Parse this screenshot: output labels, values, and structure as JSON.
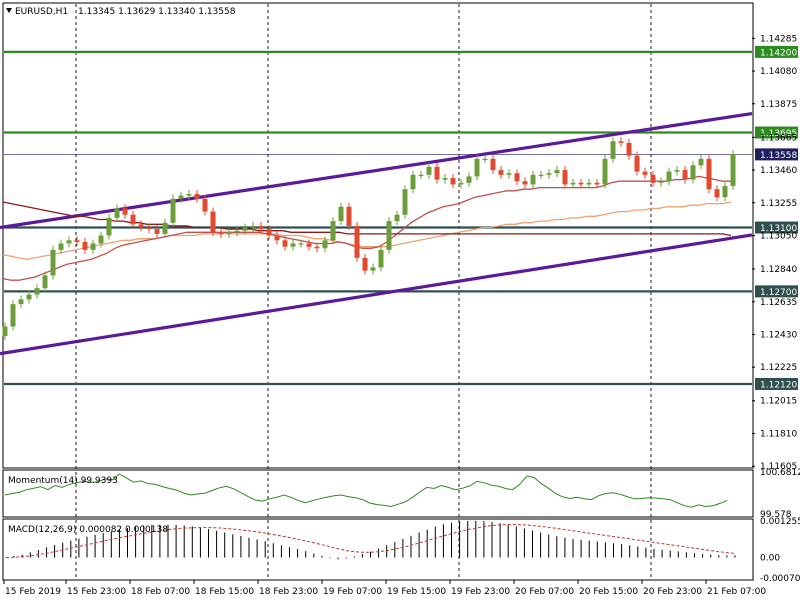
{
  "chart_data": [
    {
      "type": "candlestick",
      "symbol_label": "EURUSD,H1",
      "ohlc_label": "1.13345 1.13629 1.13340 1.13558",
      "ylim": [
        1.116,
        1.145
      ],
      "y_ticks": [
        "1.14285",
        "1.14080",
        "1.13875",
        "1.13665",
        "1.13460",
        "1.13255",
        "1.13050",
        "1.12840",
        "1.12635",
        "1.12430",
        "1.12225",
        "1.12015",
        "1.11810",
        "1.11605"
      ],
      "x_ticks": [
        "15 Feb 2019",
        "15 Feb 23:00",
        "18 Feb 07:00",
        "18 Feb 15:00",
        "18 Feb 23:00",
        "19 Feb 07:00",
        "19 Feb 15:00",
        "19 Feb 23:00",
        "20 Feb 07:00",
        "20 Feb 15:00",
        "20 Feb 23:00",
        "21 Feb 07:00"
      ],
      "bar_count": 92,
      "close": [
        1.1248,
        1.1262,
        1.1265,
        1.1268,
        1.1272,
        1.128,
        1.1296,
        1.13,
        1.1302,
        1.1301,
        1.1296,
        1.13,
        1.1305,
        1.1316,
        1.1322,
        1.1318,
        1.1312,
        1.131,
        1.1309,
        1.1306,
        1.1313,
        1.1328,
        1.133,
        1.1331,
        1.1328,
        1.132,
        1.1307,
        1.1306,
        1.1307,
        1.1308,
        1.131,
        1.1311,
        1.1309,
        1.1305,
        1.1302,
        1.1298,
        1.13,
        1.13,
        1.1298,
        1.1297,
        1.1302,
        1.1314,
        1.1323,
        1.1311,
        1.1291,
        1.1283,
        1.1285,
        1.1296,
        1.1314,
        1.1318,
        1.1334,
        1.1343,
        1.1343,
        1.1348,
        1.134,
        1.1341,
        1.1337,
        1.1338,
        1.1342,
        1.1353,
        1.1353,
        1.1346,
        1.1343,
        1.1344,
        1.1339,
        1.1337,
        1.1343,
        1.1343,
        1.1344,
        1.1346,
        1.1337,
        1.1338,
        1.1337,
        1.1338,
        1.1337,
        1.1353,
        1.1364,
        1.1363,
        1.1355,
        1.1345,
        1.1343,
        1.1338,
        1.1339,
        1.1345,
        1.1346,
        1.134,
        1.1349,
        1.1353,
        1.1334,
        1.1329,
        1.1336,
        1.1356
      ],
      "series": [
        {
          "name": "",
          "color": "#f0a071",
          "values": [
            1.1293,
            1.1292,
            1.1291,
            1.129,
            1.1291,
            1.1292,
            1.1293,
            1.1294,
            1.1295,
            1.1296,
            1.1297,
            1.1298,
            1.1299,
            1.13,
            1.1301,
            1.1302,
            1.1302,
            1.1303,
            1.1303,
            1.1303,
            1.1304,
            1.1305,
            1.1305,
            1.1305,
            1.1305,
            1.1306,
            1.1306,
            1.1306,
            1.1306,
            1.1306,
            1.1306,
            1.1306,
            1.1306,
            1.1306,
            1.1306,
            1.1305,
            1.1305,
            1.1305,
            1.1304,
            1.1303,
            1.1303,
            1.1302,
            1.1301,
            1.13,
            1.1299,
            1.1298,
            1.1298,
            1.1298,
            1.1298,
            1.1299,
            1.13,
            1.1301,
            1.1302,
            1.1303,
            1.1304,
            1.1305,
            1.1306,
            1.1307,
            1.1308,
            1.1309,
            1.131,
            1.131,
            1.1311,
            1.1312,
            1.1312,
            1.1313,
            1.1313,
            1.1314,
            1.1314,
            1.1315,
            1.1315,
            1.1316,
            1.1316,
            1.1317,
            1.1317,
            1.1318,
            1.1319,
            1.132,
            1.132,
            1.1321,
            1.1321,
            1.1322,
            1.1322,
            1.1323,
            1.1323,
            1.1323,
            1.1324,
            1.1324,
            1.1325,
            1.1325,
            1.1325,
            1.1326
          ]
        },
        {
          "name": "",
          "color": "#c0504d",
          "values": [
            1.1278,
            1.1277,
            1.1277,
            1.1278,
            1.1279,
            1.1281,
            1.1283,
            1.1285,
            1.1287,
            1.1288,
            1.1289,
            1.129,
            1.1292,
            1.1294,
            1.1297,
            1.1299,
            1.13,
            1.1301,
            1.1302,
            1.1303,
            1.1304,
            1.1305,
            1.1306,
            1.1307,
            1.1307,
            1.1307,
            1.1307,
            1.1307,
            1.1307,
            1.1307,
            1.1307,
            1.1307,
            1.1307,
            1.1306,
            1.1305,
            1.1304,
            1.1303,
            1.1302,
            1.1301,
            1.13,
            1.13,
            1.13,
            1.1301,
            1.13,
            1.1298,
            1.1297,
            1.1297,
            1.1298,
            1.1301,
            1.1305,
            1.1309,
            1.1313,
            1.1316,
            1.1319,
            1.1321,
            1.1323,
            1.1324,
            1.1325,
            1.1327,
            1.1329,
            1.133,
            1.1331,
            1.1332,
            1.1333,
            1.1333,
            1.1334,
            1.1334,
            1.1335,
            1.1335,
            1.1335,
            1.1335,
            1.1335,
            1.1335,
            1.1335,
            1.1335,
            1.1336,
            1.1338,
            1.1339,
            1.1339,
            1.1339,
            1.1339,
            1.1339,
            1.1339,
            1.1339,
            1.134,
            1.134,
            1.1341,
            1.1342,
            1.1341,
            1.134,
            1.1339,
            1.1339
          ]
        },
        {
          "name": "",
          "color": "#8b1a1a",
          "values": [
            1.1326,
            1.1325,
            1.1324,
            1.1323,
            1.1322,
            1.1321,
            1.132,
            1.1319,
            1.1318,
            1.1317,
            1.1317,
            1.1316,
            1.1315,
            1.1315,
            1.1314,
            1.1314,
            1.1313,
            1.1313,
            1.1312,
            1.1312,
            1.1312,
            1.1311,
            1.1311,
            1.1311,
            1.131,
            1.131,
            1.131,
            1.131,
            1.1309,
            1.1309,
            1.1309,
            1.1309,
            1.1308,
            1.1308,
            1.1308,
            1.1308,
            1.1307,
            1.1307,
            1.1307,
            1.1307,
            1.1307,
            1.1307,
            1.1307,
            1.1306,
            1.1306,
            1.1306,
            1.1306,
            1.1306,
            1.1306,
            1.1306,
            1.1306,
            1.1306,
            1.1306,
            1.1306,
            1.1306,
            1.1306,
            1.1306,
            1.1306,
            1.1306,
            1.1306,
            1.1306,
            1.1306,
            1.1306,
            1.1306,
            1.1306,
            1.1306,
            1.1306,
            1.1306,
            1.1306,
            1.1306,
            1.1306,
            1.1306,
            1.1306,
            1.1306,
            1.1306,
            1.1306,
            1.1306,
            1.1306,
            1.1306,
            1.1306,
            1.1306,
            1.1306,
            1.1306,
            1.1306,
            1.1306,
            1.1306,
            1.1306,
            1.1306,
            1.1306,
            1.1306,
            1.1306,
            1.1305
          ]
        }
      ],
      "horizontal_levels": [
        {
          "label": "1.14200",
          "value": 1.142,
          "color": "#2e8b22"
        },
        {
          "label": "1.13695",
          "value": 1.13695,
          "color": "#2e8b22"
        },
        {
          "label": "1.13558",
          "value": 1.13558,
          "color": "#1f1f5e"
        },
        {
          "label": "1.13100",
          "value": 1.131,
          "color": "#2f4f4f"
        },
        {
          "label": "1.12700",
          "value": 1.127,
          "color": "#2f4f4f"
        },
        {
          "label": "1.12120",
          "value": 1.1212,
          "color": "#2f4f4f"
        }
      ],
      "trend_lines": [
        {
          "from": [
            0,
            1.131
          ],
          "to": [
            110,
            1.13935
          ],
          "color": "#5b1a99"
        },
        {
          "from": [
            0,
            1.1231
          ],
          "to": [
            110,
            1.1318
          ],
          "color": "#5b1a99"
        }
      ],
      "colors": {
        "bull": "#6b9e3a",
        "bear": "#e2492e",
        "grid": "#1a1a1a"
      }
    },
    {
      "type": "line",
      "label": "Momentum(14) 99.9393",
      "y_ticks": [
        "100.6812",
        "99.578"
      ],
      "ylim": [
        99.53,
        100.71
      ],
      "values": [
        100.08,
        100.12,
        100.15,
        100.22,
        100.26,
        100.3,
        100.22,
        100.33,
        100.28,
        100.36,
        100.4,
        100.44,
        100.41,
        100.43,
        100.5,
        100.48,
        100.63,
        100.52,
        100.42,
        100.45,
        100.38,
        100.36,
        100.3,
        100.25,
        100.21,
        100.13,
        100.08,
        100.11,
        100.13,
        100.2,
        100.27,
        100.31,
        100.24,
        100.14,
        100.04,
        99.95,
        99.92,
        99.98,
        100.02,
        100.08,
        100.02,
        99.94,
        99.88,
        99.93,
        99.98,
        100.02,
        100.06,
        100.08,
        100.04,
        100.01,
        99.96,
        99.87,
        99.83,
        99.81,
        99.78,
        99.84,
        99.9,
        100.02,
        100.16,
        100.28,
        100.25,
        100.33,
        100.28,
        100.22,
        100.26,
        100.32,
        100.44,
        100.4,
        100.34,
        100.31,
        100.25,
        100.22,
        100.36,
        100.58,
        100.54,
        100.38,
        100.26,
        100.12,
        100.03,
        99.99,
        100.02,
        99.98,
        99.96,
        100.06,
        100.12,
        100.14,
        100.1,
        100.04,
        99.98,
        99.99,
        100.01,
        100.0,
        99.98,
        99.96,
        99.88,
        99.8,
        99.76,
        99.82,
        99.78,
        99.8,
        99.86,
        99.94
      ]
    },
    {
      "type": "macd",
      "label": "MACD(12,26,9) 0.000082 0.000138",
      "y_ticks": [
        "0.001255",
        "0.00",
        "-0.000702"
      ],
      "ylim": [
        -0.000702,
        0.001255
      ],
      "histogram": [
        2e-05,
        5e-05,
        0.0001,
        0.00018,
        0.00026,
        0.00035,
        0.00043,
        0.00051,
        0.00058,
        0.00065,
        0.00072,
        0.00078,
        0.00084,
        0.0009,
        0.00096,
        0.00101,
        0.00106,
        0.0011,
        0.00112,
        0.00113,
        0.00113,
        0.00112,
        0.0011,
        0.00107,
        0.00103,
        0.00098,
        0.00092,
        0.00086,
        0.0008,
        0.00074,
        0.00068,
        0.00062,
        0.00056,
        0.00049,
        0.00042,
        0.00036,
        0.00029,
        0.00022,
        0.00014,
        6e-05,
        -2e-05,
        -6e-05,
        -3e-05,
        4e-05,
        0.00012,
        0.0002,
        0.00031,
        0.00042,
        0.00053,
        0.00064,
        0.00075,
        0.00086,
        0.00096,
        0.00106,
        0.00114,
        0.0012,
        0.00124,
        0.00126,
        0.00126,
        0.00125,
        0.00122,
        0.00118,
        0.00113,
        0.00107,
        0.001,
        0.00093,
        0.00086,
        0.00079,
        0.00073,
        0.00068,
        0.00064,
        0.00061,
        0.00058,
        0.00055,
        0.00052,
        0.00049,
        0.00046,
        0.00042,
        0.00038,
        0.00034,
        0.0003,
        0.00027,
        0.00024,
        0.00021,
        0.00018,
        0.00015,
        0.00012,
        0.0001,
        8e-05,
        8e-05,
        8e-05
      ],
      "signal": [
        0.0,
        1e-05,
        3e-05,
        6e-05,
        0.0001,
        0.00015,
        0.0002,
        0.00026,
        0.00032,
        0.00038,
        0.00044,
        0.0005,
        0.00056,
        0.00062,
        0.00068,
        0.00073,
        0.00078,
        0.00083,
        0.00088,
        0.00092,
        0.00096,
        0.00099,
        0.00101,
        0.00102,
        0.00103,
        0.00103,
        0.00102,
        0.001,
        0.00098,
        0.00095,
        0.00092,
        0.00088,
        0.00084,
        0.00079,
        0.00074,
        0.00069,
        0.00063,
        0.00057,
        0.00051,
        0.00044,
        0.00037,
        0.0003,
        0.00024,
        0.0002,
        0.00018,
        0.00018,
        0.0002,
        0.00024,
        0.00029,
        0.00035,
        0.00042,
        0.0005,
        0.00058,
        0.00066,
        0.00074,
        0.00082,
        0.00089,
        0.00096,
        0.00101,
        0.00106,
        0.0011,
        0.00112,
        0.00113,
        0.00113,
        0.00112,
        0.0011,
        0.00107,
        0.00104,
        0.001,
        0.00096,
        0.00092,
        0.00088,
        0.00084,
        0.0008,
        0.00076,
        0.00072,
        0.00068,
        0.00064,
        0.0006,
        0.00056,
        0.00052,
        0.00048,
        0.00044,
        0.0004,
        0.00036,
        0.00032,
        0.00028,
        0.00024,
        0.0002,
        0.00017,
        0.00014
      ]
    }
  ]
}
